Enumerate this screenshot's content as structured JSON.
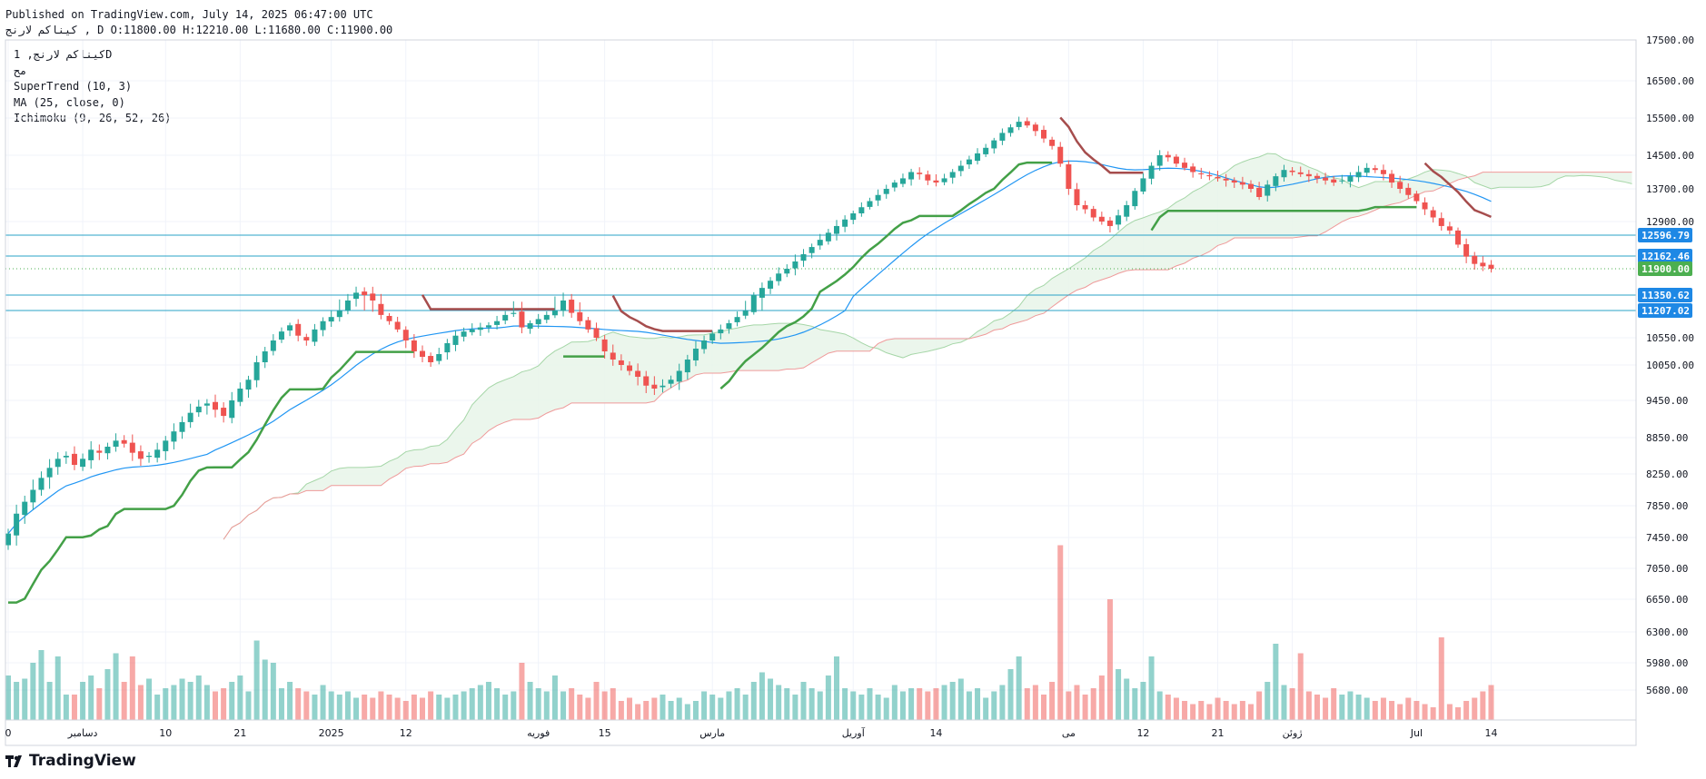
{
  "header": {
    "published": "Published on TradingView.com, July 14, 2025 06:47:00 UTC",
    "ohlc": "کیناکم لارنج , D O:11800.00 H:12210.00 L:11680.00 C:11900.00"
  },
  "legend": {
    "symbol": "کیناکم لارنج, 1D",
    "sub": "مح",
    "supertrend": "SuperTrend (10, 3)",
    "ma": "MA (25, close, 0)",
    "ichimoku": "Ichimoku (9, 26, 52, 26)"
  },
  "branding": {
    "logo_text": "TradingView"
  },
  "colors": {
    "up": "#26a69a",
    "down": "#ef5350",
    "supertrend_up": "#43a047",
    "supertrend_down": "#a64d4d",
    "ma": "#2196f3",
    "cloud": "#e8f5e9",
    "span_b": "#ef9a9a",
    "hline": "#29a3c7",
    "last_price": "#4caf50",
    "price_tag": "#1e88e5"
  },
  "chart_data": {
    "type": "candlestick",
    "title": "کیناکم لارنج, 1D",
    "ylim": [
      5400,
      17700
    ],
    "y_ticks": [
      17500,
      16500,
      15500,
      14500,
      13700,
      12900,
      10550,
      10050,
      9450,
      8850,
      8250,
      7850,
      7450,
      7050,
      6650,
      6300,
      5980,
      5680
    ],
    "y_tick_labels": [
      "17500.00",
      "16500.00",
      "15500.00",
      "14500.00",
      "13700.00",
      "12900.00",
      "10550.00",
      "10050.00",
      "9450.00",
      "8850.00",
      "8250.00",
      "7850.00",
      "7450.00",
      "7050.00",
      "6650.00",
      "6300.00",
      "5980.00",
      "5680.00"
    ],
    "x_ticks": [
      {
        "label": "0",
        "i": 0
      },
      {
        "label": "دسامبر",
        "i": 9
      },
      {
        "label": "10",
        "i": 19
      },
      {
        "label": "21",
        "i": 28
      },
      {
        "label": "2025",
        "i": 39
      },
      {
        "label": "12",
        "i": 48
      },
      {
        "label": "فوریه",
        "i": 64
      },
      {
        "label": "15",
        "i": 72
      },
      {
        "label": "مارس",
        "i": 85
      },
      {
        "label": "آوریل",
        "i": 102
      },
      {
        "label": "14",
        "i": 112
      },
      {
        "label": "می",
        "i": 128
      },
      {
        "label": "12",
        "i": 137
      },
      {
        "label": "21",
        "i": 146
      },
      {
        "label": "ژوئن",
        "i": 155
      },
      {
        "label": "Jul",
        "i": 170
      },
      {
        "label": "14",
        "i": 179
      }
    ],
    "price_lines": [
      {
        "label": "12596.79",
        "value": 12596.79
      },
      {
        "label": "12162.46",
        "value": 12162.46
      },
      {
        "label": "11350.62",
        "value": 11350.62
      },
      {
        "label": "11207.02",
        "value": 11207.02
      }
    ],
    "last_price": {
      "label": "11900.00",
      "value": 11900
    },
    "closes": [
      7500,
      7750,
      7900,
      8050,
      8200,
      8350,
      8500,
      8550,
      8400,
      8500,
      8650,
      8600,
      8700,
      8800,
      8750,
      8600,
      8500,
      8550,
      8650,
      8800,
      8950,
      9100,
      9250,
      9350,
      9400,
      9300,
      9200,
      9450,
      9650,
      9800,
      10100,
      10300,
      10500,
      10700,
      10850,
      10600,
      10500,
      10750,
      10950,
      11050,
      11200,
      11300,
      11400,
      11350,
      11300,
      11100,
      10950,
      10750,
      10500,
      10300,
      10200,
      10100,
      10250,
      10450,
      10600,
      10700,
      10750,
      10800,
      10850,
      10950,
      11100,
      11150,
      10800,
      10900,
      11000,
      11100,
      11200,
      11300,
      11150,
      10950,
      10750,
      10550,
      10300,
      10150,
      10050,
      9950,
      9850,
      9700,
      9650,
      9700,
      9800,
      9950,
      10150,
      10350,
      10500,
      10650,
      10750,
      10900,
      11050,
      11200,
      11350,
      11500,
      11650,
      11800,
      11900,
      12050,
      12200,
      12350,
      12500,
      12650,
      12800,
      12950,
      13100,
      13250,
      13400,
      13550,
      13700,
      13850,
      13950,
      14100,
      14050,
      13900,
      13850,
      13950,
      14100,
      14250,
      14400,
      14550,
      14700,
      14900,
      15100,
      15250,
      15400,
      15300,
      15150,
      14950,
      14750,
      14300,
      13700,
      13300,
      13200,
      13000,
      12900,
      12800,
      13050,
      13300,
      13650,
      13950,
      14250,
      14500,
      14450,
      14300,
      14200,
      14100,
      14050,
      14000,
      13950,
      13900,
      13850,
      13800,
      13700,
      13500,
      13800,
      14000,
      14150,
      14100,
      14050,
      14000,
      13950,
      13900,
      13850,
      13900,
      14000,
      14100,
      14200,
      14150,
      14050,
      13850,
      13700,
      13550,
      13400,
      13200,
      13000,
      12800,
      12700,
      12400,
      12150,
      12000,
      11950,
      11900
    ],
    "volumes": [
      14,
      12,
      13,
      18,
      22,
      12,
      20,
      8,
      8,
      12,
      14,
      10,
      16,
      21,
      12,
      20,
      11,
      13,
      8,
      10,
      11,
      13,
      12,
      14,
      11,
      9,
      10,
      12,
      14,
      9,
      25,
      19,
      18,
      10,
      12,
      10,
      9,
      8,
      11,
      9,
      8,
      9,
      7,
      8,
      7,
      9,
      8,
      7,
      6,
      8,
      7,
      9,
      8,
      7,
      8,
      9,
      10,
      11,
      12,
      10,
      8,
      9,
      18,
      12,
      10,
      9,
      14,
      9,
      10,
      8,
      7,
      12,
      9,
      10,
      6,
      7,
      5,
      6,
      7,
      8,
      6,
      7,
      5,
      6,
      9,
      8,
      7,
      9,
      10,
      8,
      12,
      15,
      13,
      11,
      10,
      8,
      12,
      10,
      9,
      14,
      20,
      10,
      9,
      8,
      10,
      8,
      7,
      11,
      9,
      10,
      10,
      9,
      10,
      11,
      12,
      13,
      9,
      10,
      7,
      9,
      11,
      16,
      20,
      10,
      11,
      8,
      12,
      55,
      9,
      11,
      8,
      10,
      14,
      38,
      16,
      13,
      10,
      12,
      20,
      9,
      8,
      7,
      6,
      5,
      6,
      5,
      7,
      6,
      5,
      6,
      5,
      9,
      12,
      24,
      11,
      10,
      21,
      9,
      8,
      7,
      10,
      8,
      9,
      8,
      7,
      6,
      7,
      6,
      5,
      7,
      6,
      5,
      4,
      26,
      5,
      4,
      6,
      7,
      9,
      11
    ]
  }
}
